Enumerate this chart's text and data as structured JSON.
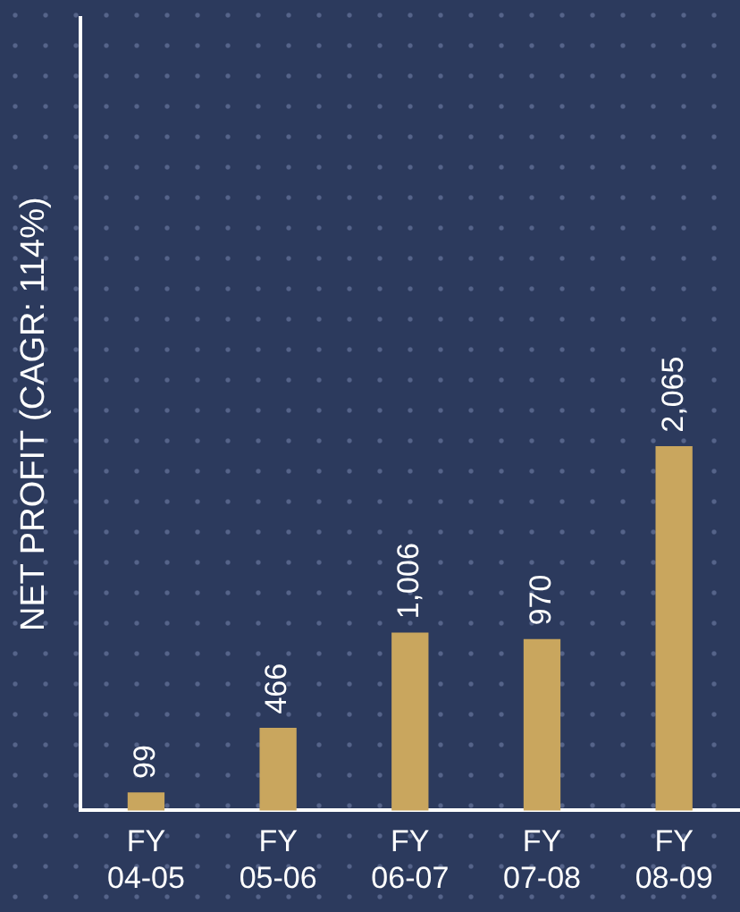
{
  "chart_data": {
    "type": "bar",
    "ylabel": "NET PROFIT (CAGR: 114%)",
    "categories": [
      "FY\n04-05",
      "FY\n05-06",
      "FY\n06-07",
      "FY\n07-08",
      "FY\n08-09"
    ],
    "values": [
      99,
      466,
      1006,
      970,
      2065
    ],
    "color": "#c9a65e",
    "value_labels": [
      "99",
      "466",
      "1,006",
      "970",
      "2,065"
    ],
    "grid": false,
    "legend": false,
    "tick_labels": "x"
  }
}
